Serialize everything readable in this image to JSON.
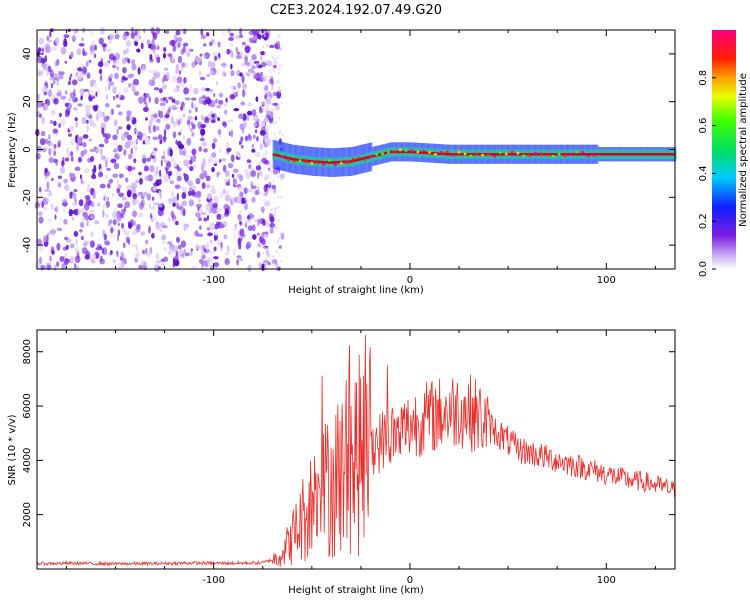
{
  "title": "C2E3.2024.192.07.49.G20",
  "colors": {
    "snr_line": "#e8302c",
    "spectrum_scatter": "#7a1fe0",
    "track_core": "#d40020",
    "track_halo": "#20c8a0"
  },
  "colorbar": {
    "label": "Normalized spectral amplitude",
    "ticks": [
      "0.0",
      "0.2",
      "0.4",
      "0.6",
      "0.8"
    ],
    "tick_values": [
      0.0,
      0.2,
      0.4,
      0.6,
      0.8
    ],
    "range": [
      0.0,
      1.0
    ],
    "colormap": "rainbow (purple-blue-cyan-green-yellow-red-magenta)"
  },
  "chart_data": [
    {
      "type": "heatmap",
      "name": "spectrogram",
      "xlabel": "Height of straight line (km)",
      "ylabel": "Frequency (Hz)",
      "xlim": [
        -190,
        135
      ],
      "ylim": [
        -50,
        50
      ],
      "xticks": [
        -100,
        0,
        100
      ],
      "xtick_labels": [
        "-100",
        "0",
        "100"
      ],
      "yticks": [
        -40,
        -20,
        0,
        20,
        40
      ],
      "ytick_labels": [
        "-40",
        "-20",
        "0",
        "20",
        "40"
      ],
      "noise_region_x": [
        -190,
        -70
      ],
      "tracked_signal": {
        "x": [
          -70,
          -60,
          -50,
          -40,
          -30,
          -20,
          -10,
          0,
          10,
          20,
          40,
          60,
          80,
          100,
          120,
          135
        ],
        "frequency": [
          -2,
          -4,
          -5,
          -5.5,
          -5,
          -3,
          -1,
          -1,
          -1.5,
          -2,
          -2,
          -2,
          -2,
          -2,
          -2,
          -2
        ]
      },
      "grid": false
    },
    {
      "type": "line",
      "name": "snr",
      "xlabel": "Height of straight line (km)",
      "ylabel": "SNR (10 * v/v)",
      "xlim": [
        -190,
        135
      ],
      "ylim": [
        0,
        8800
      ],
      "xticks": [
        -100,
        0,
        100
      ],
      "xtick_labels": [
        "-100",
        "0",
        "100"
      ],
      "yticks": [
        2000,
        4000,
        6000,
        8000
      ],
      "ytick_labels": [
        "2000",
        "4000",
        "6000",
        "8000"
      ],
      "series": [
        {
          "x": [
            -190,
            -170,
            -150,
            -130,
            -110,
            -90,
            -75,
            -68,
            -62,
            -55,
            -50,
            -45,
            -40,
            -35,
            -30,
            -25,
            -20,
            -15,
            -10,
            -5,
            0,
            5,
            10,
            15,
            20,
            25,
            30,
            35,
            40,
            45,
            50,
            55,
            60,
            65,
            70,
            75,
            80,
            85,
            90,
            95,
            100,
            105,
            110,
            115,
            120,
            125,
            130,
            135
          ],
          "y": [
            200,
            210,
            190,
            200,
            220,
            210,
            230,
            400,
            900,
            1800,
            2500,
            2800,
            3200,
            3600,
            4000,
            4200,
            4500,
            4700,
            4900,
            5100,
            5300,
            5500,
            5600,
            5700,
            5800,
            5900,
            5800,
            5600,
            5300,
            5000,
            4700,
            4400,
            4300,
            4200,
            4100,
            4000,
            3900,
            3800,
            3700,
            3600,
            3500,
            3400,
            3300,
            3250,
            3200,
            3100,
            3000,
            2900
          ]
        }
      ],
      "grid": false
    }
  ]
}
